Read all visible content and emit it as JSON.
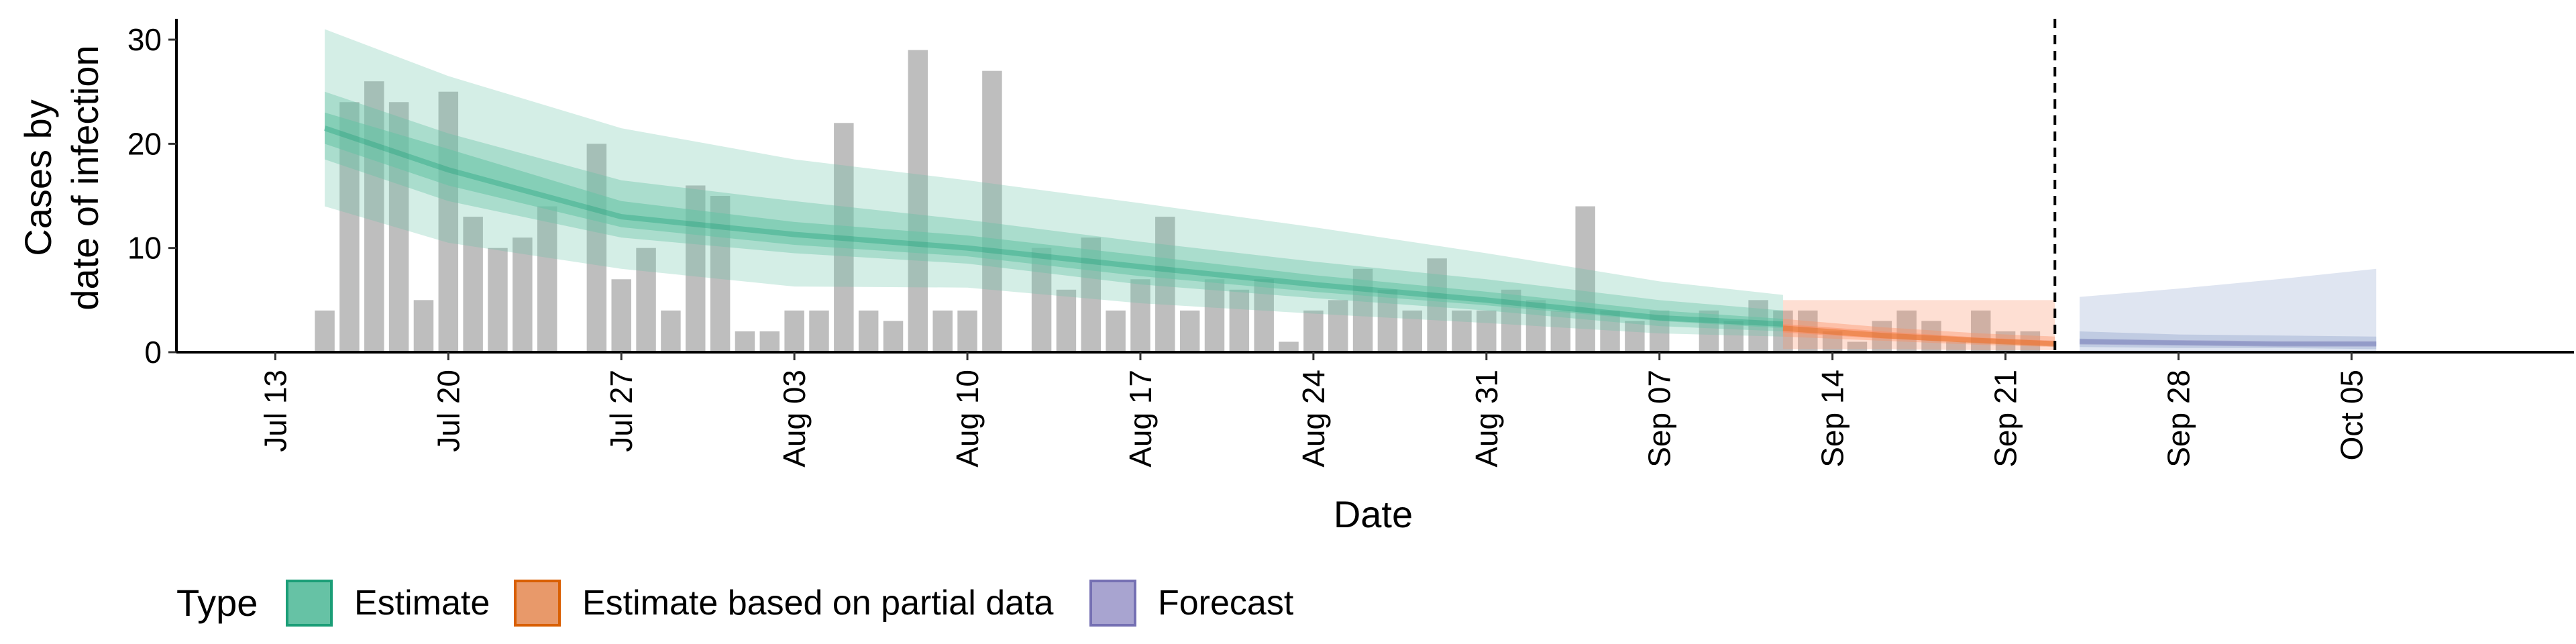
{
  "chart_data": {
    "type": "bar",
    "xlabel": "Date",
    "ylabel_lines": [
      "Cases by",
      "date of infection"
    ],
    "ylim": [
      0,
      32
    ],
    "y_ticks": [
      0,
      10,
      20,
      30
    ],
    "x_ticks": [
      "Jul 13",
      "Jul 20",
      "Jul 27",
      "Aug 03",
      "Aug 10",
      "Aug 17",
      "Aug 24",
      "Aug 31",
      "Sep 07",
      "Sep 14",
      "Sep 21",
      "Sep 28",
      "Oct 05"
    ],
    "x_tick_dates": [
      "2020-07-13",
      "2020-07-20",
      "2020-07-27",
      "2020-08-03",
      "2020-08-10",
      "2020-08-17",
      "2020-08-24",
      "2020-08-31",
      "2020-09-07",
      "2020-09-14",
      "2020-09-21",
      "2020-09-28",
      "2020-10-05"
    ],
    "xlim": [
      "2020-07-09",
      "2020-10-14"
    ],
    "vline_date": "2020-09-23",
    "bars": {
      "start_date": "2020-07-15",
      "values": [
        4,
        24,
        26,
        24,
        5,
        25,
        13,
        10,
        11,
        14,
        0,
        20,
        7,
        10,
        4,
        16,
        15,
        2,
        2,
        4,
        4,
        22,
        4,
        3,
        29,
        4,
        4,
        27,
        0,
        10,
        6,
        11,
        4,
        7,
        13,
        4,
        7,
        6,
        7,
        1,
        4,
        5,
        8,
        6,
        4,
        9,
        4,
        4,
        6,
        5,
        4,
        14,
        4,
        3,
        4,
        0,
        4,
        3,
        5,
        4,
        4,
        2,
        1,
        3,
        4,
        3,
        1,
        4,
        2,
        2
      ],
      "color": "#bebebe"
    },
    "series": [
      {
        "name": "Estimate",
        "color": "#1b9e77",
        "fill": "#66c2a5",
        "dates": [
          "2020-07-15",
          "2020-07-20",
          "2020-07-27",
          "2020-08-03",
          "2020-08-10",
          "2020-08-17",
          "2020-08-24",
          "2020-08-31",
          "2020-09-07",
          "2020-09-12"
        ],
        "median": [
          21.5,
          17.5,
          13.0,
          11.3,
          10.0,
          8.2,
          6.5,
          5.0,
          3.3,
          2.7
        ],
        "inner": [
          [
            20,
            23
          ],
          [
            16,
            19.5
          ],
          [
            12,
            14.5
          ],
          [
            10.3,
            12.5
          ],
          [
            9.2,
            11.2
          ],
          [
            7.3,
            9.3
          ],
          [
            5.8,
            7.4
          ],
          [
            4.5,
            5.8
          ],
          [
            3,
            4
          ],
          [
            2.3,
            3.2
          ]
        ],
        "mid": [
          [
            18.5,
            25
          ],
          [
            14.5,
            21
          ],
          [
            11,
            16.5
          ],
          [
            9.5,
            14.5
          ],
          [
            8.5,
            12.7
          ],
          [
            6.5,
            10.6
          ],
          [
            5.2,
            8.7
          ],
          [
            4,
            7
          ],
          [
            2.5,
            5
          ],
          [
            2,
            4
          ]
        ],
        "outer": [
          [
            14,
            31
          ],
          [
            10.5,
            26.5
          ],
          [
            8,
            21.5
          ],
          [
            6.3,
            18.5
          ],
          [
            6.2,
            16.5
          ],
          [
            4.7,
            14.3
          ],
          [
            3.7,
            12
          ],
          [
            2.8,
            9.5
          ],
          [
            1.8,
            6.8
          ],
          [
            1.5,
            5.5
          ]
        ]
      },
      {
        "name": "Estimate based on partial data",
        "color": "#d95f02",
        "fill": "#fc8d62",
        "dates": [
          "2020-09-12",
          "2020-09-16",
          "2020-09-20",
          "2020-09-23"
        ],
        "median": [
          2.3,
          1.6,
          1.1,
          0.8
        ],
        "inner": [
          [
            1.9,
            2.7
          ],
          [
            1.3,
            2
          ],
          [
            0.9,
            1.4
          ],
          [
            0.6,
            1.1
          ]
        ],
        "mid": [
          [
            1.5,
            3.2
          ],
          [
            1.1,
            2.4
          ],
          [
            0.7,
            1.8
          ],
          [
            0.5,
            1.5
          ]
        ],
        "outer": [
          [
            0.3,
            5
          ],
          [
            0.3,
            5
          ],
          [
            0.2,
            5
          ],
          [
            0.2,
            5
          ]
        ]
      },
      {
        "name": "Forecast",
        "color": "#7570b3",
        "fill": "#8da0cb",
        "dates": [
          "2020-09-24",
          "2020-09-28",
          "2020-10-02",
          "2020-10-06"
        ],
        "median": [
          1.0,
          0.9,
          0.8,
          0.8
        ],
        "inner": [
          [
            0.8,
            1.3
          ],
          [
            0.7,
            1.1
          ],
          [
            0.6,
            1.0
          ],
          [
            0.6,
            1.0
          ]
        ],
        "mid": [
          [
            0.5,
            2
          ],
          [
            0.4,
            1.7
          ],
          [
            0.4,
            1.6
          ],
          [
            0.3,
            1.5
          ]
        ],
        "outer": [
          [
            0.1,
            5.3
          ],
          [
            0.1,
            6.1
          ],
          [
            0.1,
            7
          ],
          [
            0.1,
            8
          ]
        ]
      }
    ],
    "legend": {
      "title": "Type",
      "position": "bottom-left",
      "items": [
        {
          "label": "Estimate",
          "fill": "#66c2a5",
          "stroke": "#1b9e77"
        },
        {
          "label": "Estimate based on partial data",
          "fill": "#e8996a",
          "stroke": "#d95f02"
        },
        {
          "label": "Forecast",
          "fill": "#a8a4d0",
          "stroke": "#7570b3"
        }
      ]
    }
  }
}
